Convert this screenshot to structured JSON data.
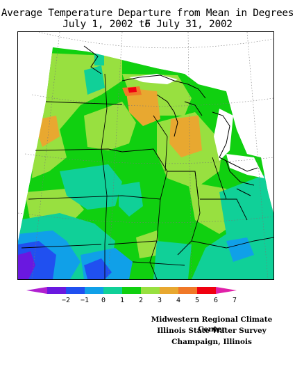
{
  "title_line1": "Average Temperature Departure from Mean in Degrees F",
  "title_line2": "July 1, 2002 to July 31, 2002",
  "legend": {
    "labels": [
      "−2",
      "−1",
      "0",
      "1",
      "2",
      "3",
      "4",
      "5",
      "6",
      "7"
    ],
    "colors": [
      "#b020d0",
      "#6a18e0",
      "#2050f0",
      "#10a0e8",
      "#10d098",
      "#10d010",
      "#98e040",
      "#e8a830",
      "#f07828",
      "#f00010",
      "#e020a8"
    ]
  },
  "credits": {
    "line1": "Midwestern Regional Climate Center",
    "line2": "Illinois State Water Survey",
    "line3": "Champaign, Illinois"
  },
  "map": {
    "region": "Midwest US",
    "color_levels": {
      "minus2": "#b020d0",
      "minus1": "#6a18e0",
      "zero": "#2050f0",
      "one": "#10a0e8",
      "two": "#10d098",
      "three": "#10d010",
      "four": "#98e040",
      "five": "#e8a830",
      "six": "#f07828",
      "seven": "#f00010"
    }
  }
}
